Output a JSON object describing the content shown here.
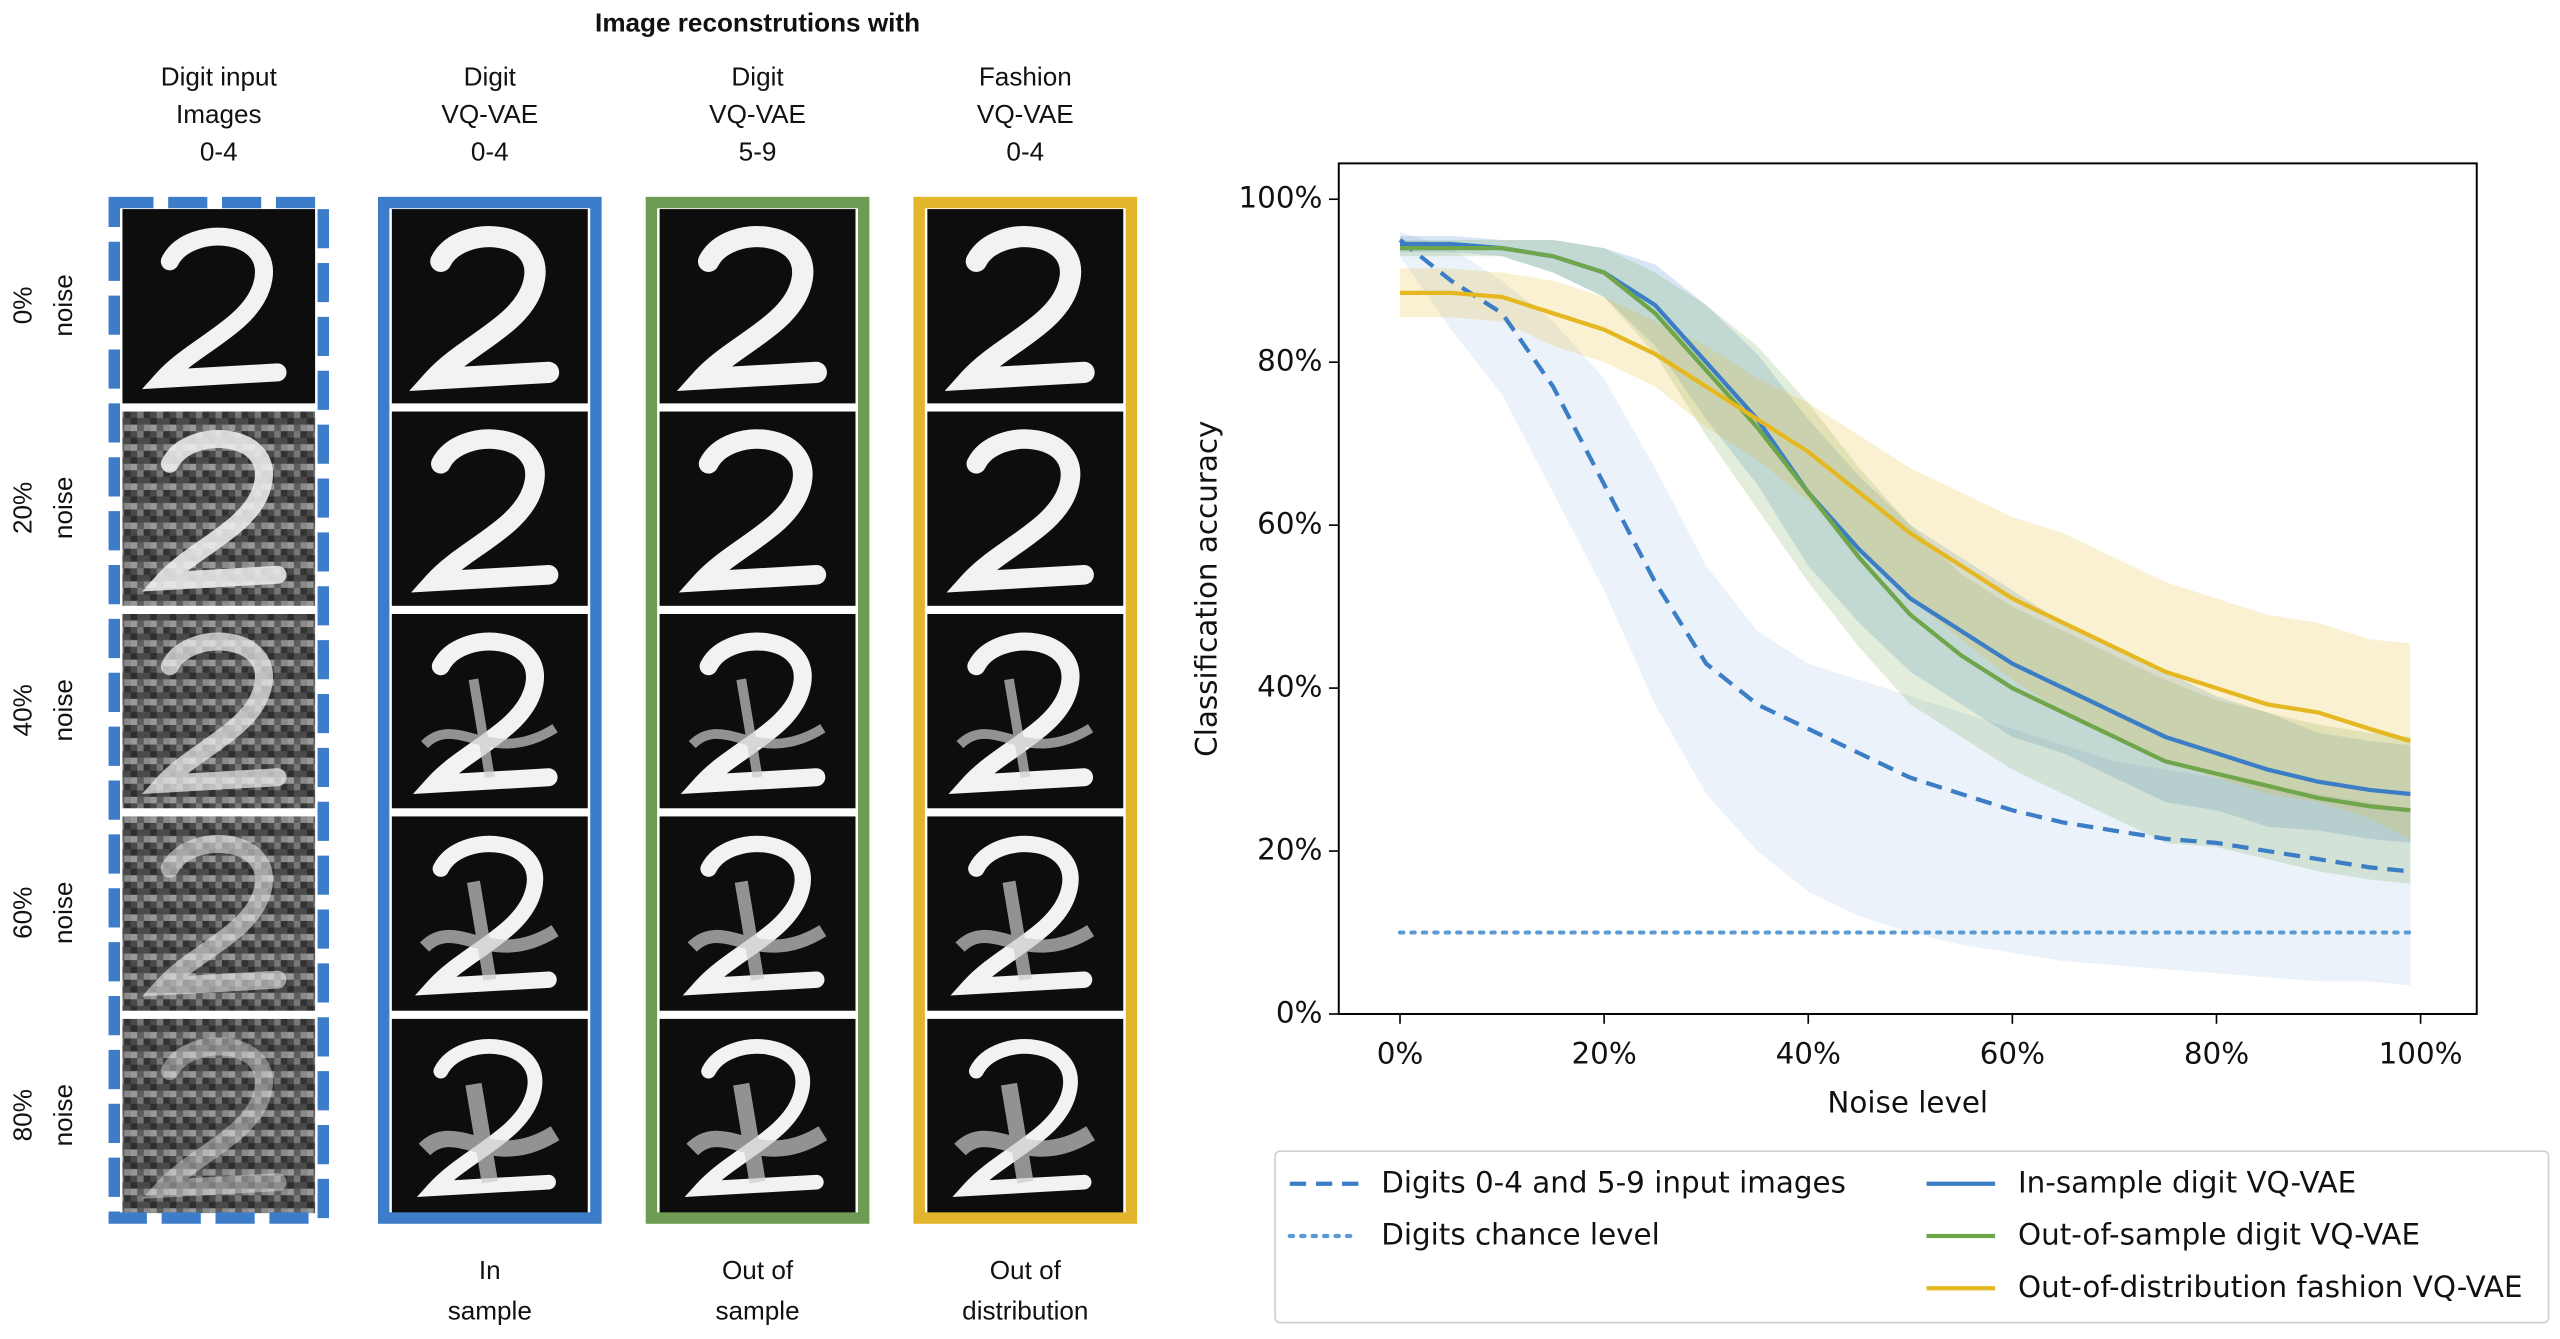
{
  "figure": {
    "title": "Image reconstrutions with",
    "columns": [
      {
        "header": [
          "Digit input",
          "Images",
          "0-4"
        ],
        "footer": []
      },
      {
        "header": [
          "Digit",
          "VQ-VAE",
          "0-4"
        ],
        "footer": [
          "In",
          "sample"
        ]
      },
      {
        "header": [
          "Digit",
          "VQ-VAE",
          "5-9"
        ],
        "footer": [
          "Out of",
          "sample"
        ]
      },
      {
        "header": [
          "Fashion",
          "VQ-VAE",
          "0-4"
        ],
        "footer": [
          "Out of",
          "distribution"
        ]
      }
    ],
    "rows": [
      [
        "0%",
        "noise"
      ],
      [
        "20%",
        "noise"
      ],
      [
        "40%",
        "noise"
      ],
      [
        "60%",
        "noise"
      ],
      [
        "80%",
        "noise"
      ]
    ]
  },
  "chart_data": {
    "type": "line",
    "xlabel": "Noise level",
    "ylabel": "Classification accuracy",
    "xlim": [
      -6,
      105.5
    ],
    "ylim": [
      0,
      104.4
    ],
    "xticks": [
      {
        "value": 0,
        "label": "0%"
      },
      {
        "value": 20,
        "label": "20%"
      },
      {
        "value": 40,
        "label": "40%"
      },
      {
        "value": 60,
        "label": "60%"
      },
      {
        "value": 80,
        "label": "80%"
      },
      {
        "value": 100,
        "label": "100%"
      }
    ],
    "yticks": [
      {
        "value": 0,
        "label": "0%"
      },
      {
        "value": 20,
        "label": "20%"
      },
      {
        "value": 40,
        "label": "40%"
      },
      {
        "value": 60,
        "label": "60%"
      },
      {
        "value": 80,
        "label": "80%"
      },
      {
        "value": 100,
        "label": "100%"
      }
    ],
    "x": [
      0,
      5,
      10,
      15,
      20,
      25,
      30,
      35,
      40,
      45,
      50,
      55,
      60,
      65,
      70,
      75,
      80,
      85,
      90,
      95,
      99
    ],
    "series": [
      {
        "name": "Digits 0-4  and 5-9 input images",
        "color": "#3b7ec6",
        "style": "dashed",
        "values": [
          95,
          90,
          86,
          77,
          65,
          53,
          43,
          38,
          35,
          32,
          29,
          27,
          25,
          23.5,
          22.5,
          21.5,
          21,
          20,
          19,
          18,
          17.5
        ],
        "lower": [
          93,
          84,
          76,
          64,
          52,
          38,
          27,
          20,
          15,
          12,
          10,
          8.5,
          7.5,
          6.5,
          6,
          5.5,
          5,
          4.5,
          4,
          4,
          3.5
        ],
        "upper": [
          96,
          94,
          90,
          85,
          78,
          67,
          55,
          47,
          43,
          41,
          39,
          37,
          35,
          33,
          31,
          30,
          29,
          28,
          27,
          26,
          25
        ]
      },
      {
        "name": "Digits chance level",
        "color": "#5b9bd5",
        "style": "dotted",
        "values": [
          10,
          10,
          10,
          10,
          10,
          10,
          10,
          10,
          10,
          10,
          10,
          10,
          10,
          10,
          10,
          10,
          10,
          10,
          10,
          10,
          10
        ]
      },
      {
        "name": "In-sample digit VQ-VAE",
        "color": "#3b7ec6",
        "style": "solid",
        "values": [
          94.5,
          94.5,
          94,
          93,
          91,
          87,
          80,
          73,
          64,
          57,
          51,
          47,
          43,
          40,
          37,
          34,
          32,
          30,
          28.5,
          27.5,
          27
        ],
        "lower": [
          93.5,
          93.5,
          93,
          91,
          88,
          82,
          73,
          65,
          55,
          48,
          42,
          38,
          34,
          32,
          29,
          26,
          25,
          23,
          22.5,
          21.5,
          21
        ],
        "upper": [
          95.5,
          95.5,
          95,
          95,
          94,
          92,
          87,
          81,
          73,
          66,
          60,
          56,
          52,
          48,
          45,
          42,
          39,
          37,
          34.5,
          33.5,
          33
        ]
      },
      {
        "name": "Out-of-sample digit VQ-VAE",
        "color": "#6fa64b",
        "style": "solid",
        "values": [
          94,
          94,
          94,
          93,
          91,
          86,
          79,
          72,
          64,
          56,
          49,
          44,
          40,
          37,
          34,
          31,
          29.5,
          28,
          26.5,
          25.5,
          25
        ],
        "lower": [
          93,
          93,
          93,
          91,
          88,
          81,
          71,
          62,
          53,
          45,
          38,
          34,
          30,
          27,
          24,
          21,
          20.5,
          19,
          17.5,
          16.5,
          16
        ],
        "upper": [
          95,
          95,
          95,
          95,
          94,
          91,
          87,
          82,
          75,
          67,
          60,
          54,
          50,
          47,
          44,
          41,
          38.5,
          37,
          35.5,
          34.5,
          34
        ]
      },
      {
        "name": "Out-of-distribution fashion VQ-VAE",
        "color": "#e5b821",
        "style": "solid",
        "values": [
          88.5,
          88.5,
          88,
          86,
          84,
          81,
          77,
          73,
          69,
          64,
          59,
          55,
          51,
          48,
          45,
          42,
          40,
          38,
          37,
          35,
          33.5
        ],
        "lower": [
          85.5,
          85.5,
          85,
          82,
          80,
          77,
          72,
          68,
          63,
          57,
          51,
          46,
          41,
          37,
          34,
          31,
          29,
          27,
          26,
          24,
          21.5
        ],
        "upper": [
          91.5,
          91.5,
          91,
          90,
          88,
          85,
          82,
          78,
          75,
          71,
          67,
          64,
          61,
          59,
          56,
          53,
          51,
          49,
          48,
          46,
          45.5
        ]
      }
    ]
  }
}
